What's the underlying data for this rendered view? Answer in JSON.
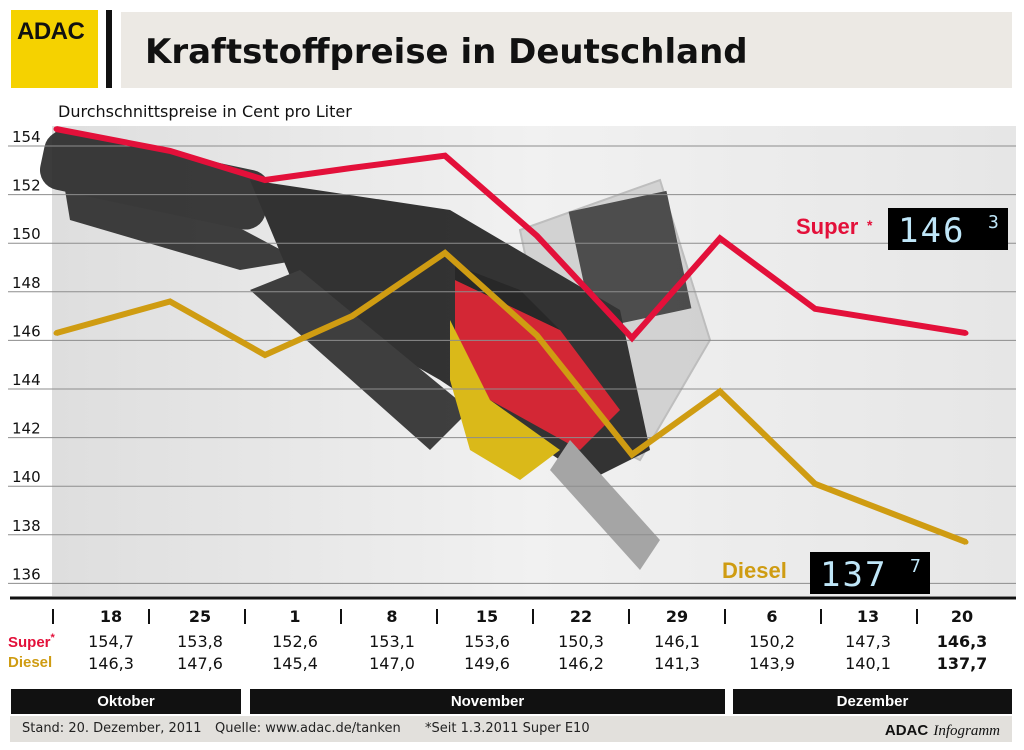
{
  "logo": {
    "text": "ADAC"
  },
  "header": {
    "title": "Kraftstoffpreise in Deutschland"
  },
  "chart_data": {
    "type": "line",
    "subtitle": "Durchschnittspreise in Cent pro Liter",
    "x": [
      "18",
      "25",
      "1",
      "8",
      "15",
      "22",
      "29",
      "6",
      "13",
      "20"
    ],
    "months": [
      "Oktober",
      "November",
      "Dezember"
    ],
    "ylim": [
      135,
      155.5
    ],
    "yticks": [
      154,
      152,
      150,
      148,
      146,
      144,
      142,
      140,
      138,
      136
    ],
    "grid": true,
    "series": [
      {
        "name": "Super",
        "marker": "*",
        "color": "#e3103a",
        "values": [
          154.7,
          153.8,
          152.6,
          153.1,
          153.6,
          150.3,
          146.1,
          150.2,
          147.3,
          146.3
        ],
        "labels": [
          "154,7",
          "153,8",
          "152,6",
          "153,1",
          "153,6",
          "150,3",
          "146,1",
          "150,2",
          "147,3",
          "146,3"
        ],
        "display_main": "146",
        "display_sup": "3"
      },
      {
        "name": "Diesel",
        "color": "#cf9c12",
        "values": [
          146.3,
          147.6,
          145.4,
          147.0,
          149.6,
          146.2,
          141.3,
          143.9,
          140.1,
          137.7
        ],
        "labels": [
          "146,3",
          "147,6",
          "145,4",
          "147,0",
          "149,6",
          "146,2",
          "141,3",
          "143,9",
          "140,1",
          "137,7"
        ],
        "display_main": "137",
        "display_sup": "7"
      }
    ]
  },
  "footer": {
    "stand": "Stand: 20. Dezember, 2011",
    "quelle": "Quelle: www.adac.de/tanken",
    "note": "*Seit 1.3.2011 Super E10",
    "brand_bold": "ADAC",
    "brand_italic": "Infogramm"
  }
}
